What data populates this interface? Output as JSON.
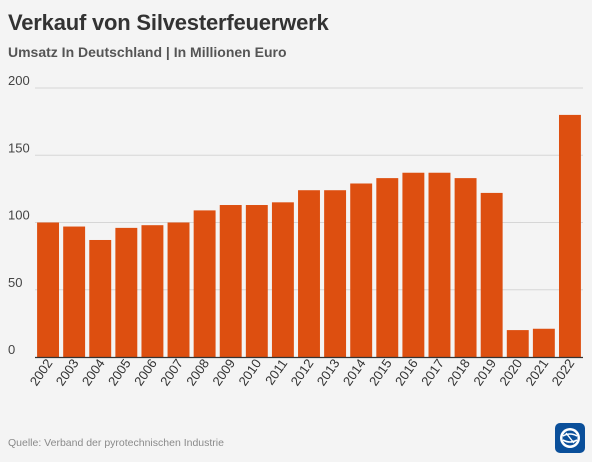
{
  "title": "Verkauf von Silvesterfeuerwerk",
  "subtitle": "Umsatz In Deutschland | In Millionen Euro",
  "source": "Quelle: Verband der pyrotechnischen Industrie",
  "colors": {
    "bar": "#dd4f10",
    "grid": "#d6d6d6",
    "axis": "#333333",
    "logo": "#0a4f9a"
  },
  "logo_icon": "tagesschau-globe-logo",
  "chart_data": {
    "type": "bar",
    "categories": [
      "2002",
      "2003",
      "2004",
      "2005",
      "2006",
      "2007",
      "2008",
      "2009",
      "2010",
      "2011",
      "2012",
      "2013",
      "2014",
      "2015",
      "2016",
      "2017",
      "2018",
      "2019",
      "2020",
      "2021",
      "2022"
    ],
    "values": [
      100,
      97,
      87,
      96,
      98,
      100,
      109,
      113,
      113,
      115,
      124,
      124,
      129,
      133,
      137,
      137,
      133,
      122,
      20,
      21,
      180
    ],
    "ylim": [
      0,
      200
    ],
    "yticks": [
      0,
      50,
      100,
      150,
      200
    ],
    "title": "Verkauf von Silvesterfeuerwerk",
    "subtitle": "Umsatz In Deutschland | In Millionen Euro",
    "grid": true
  }
}
